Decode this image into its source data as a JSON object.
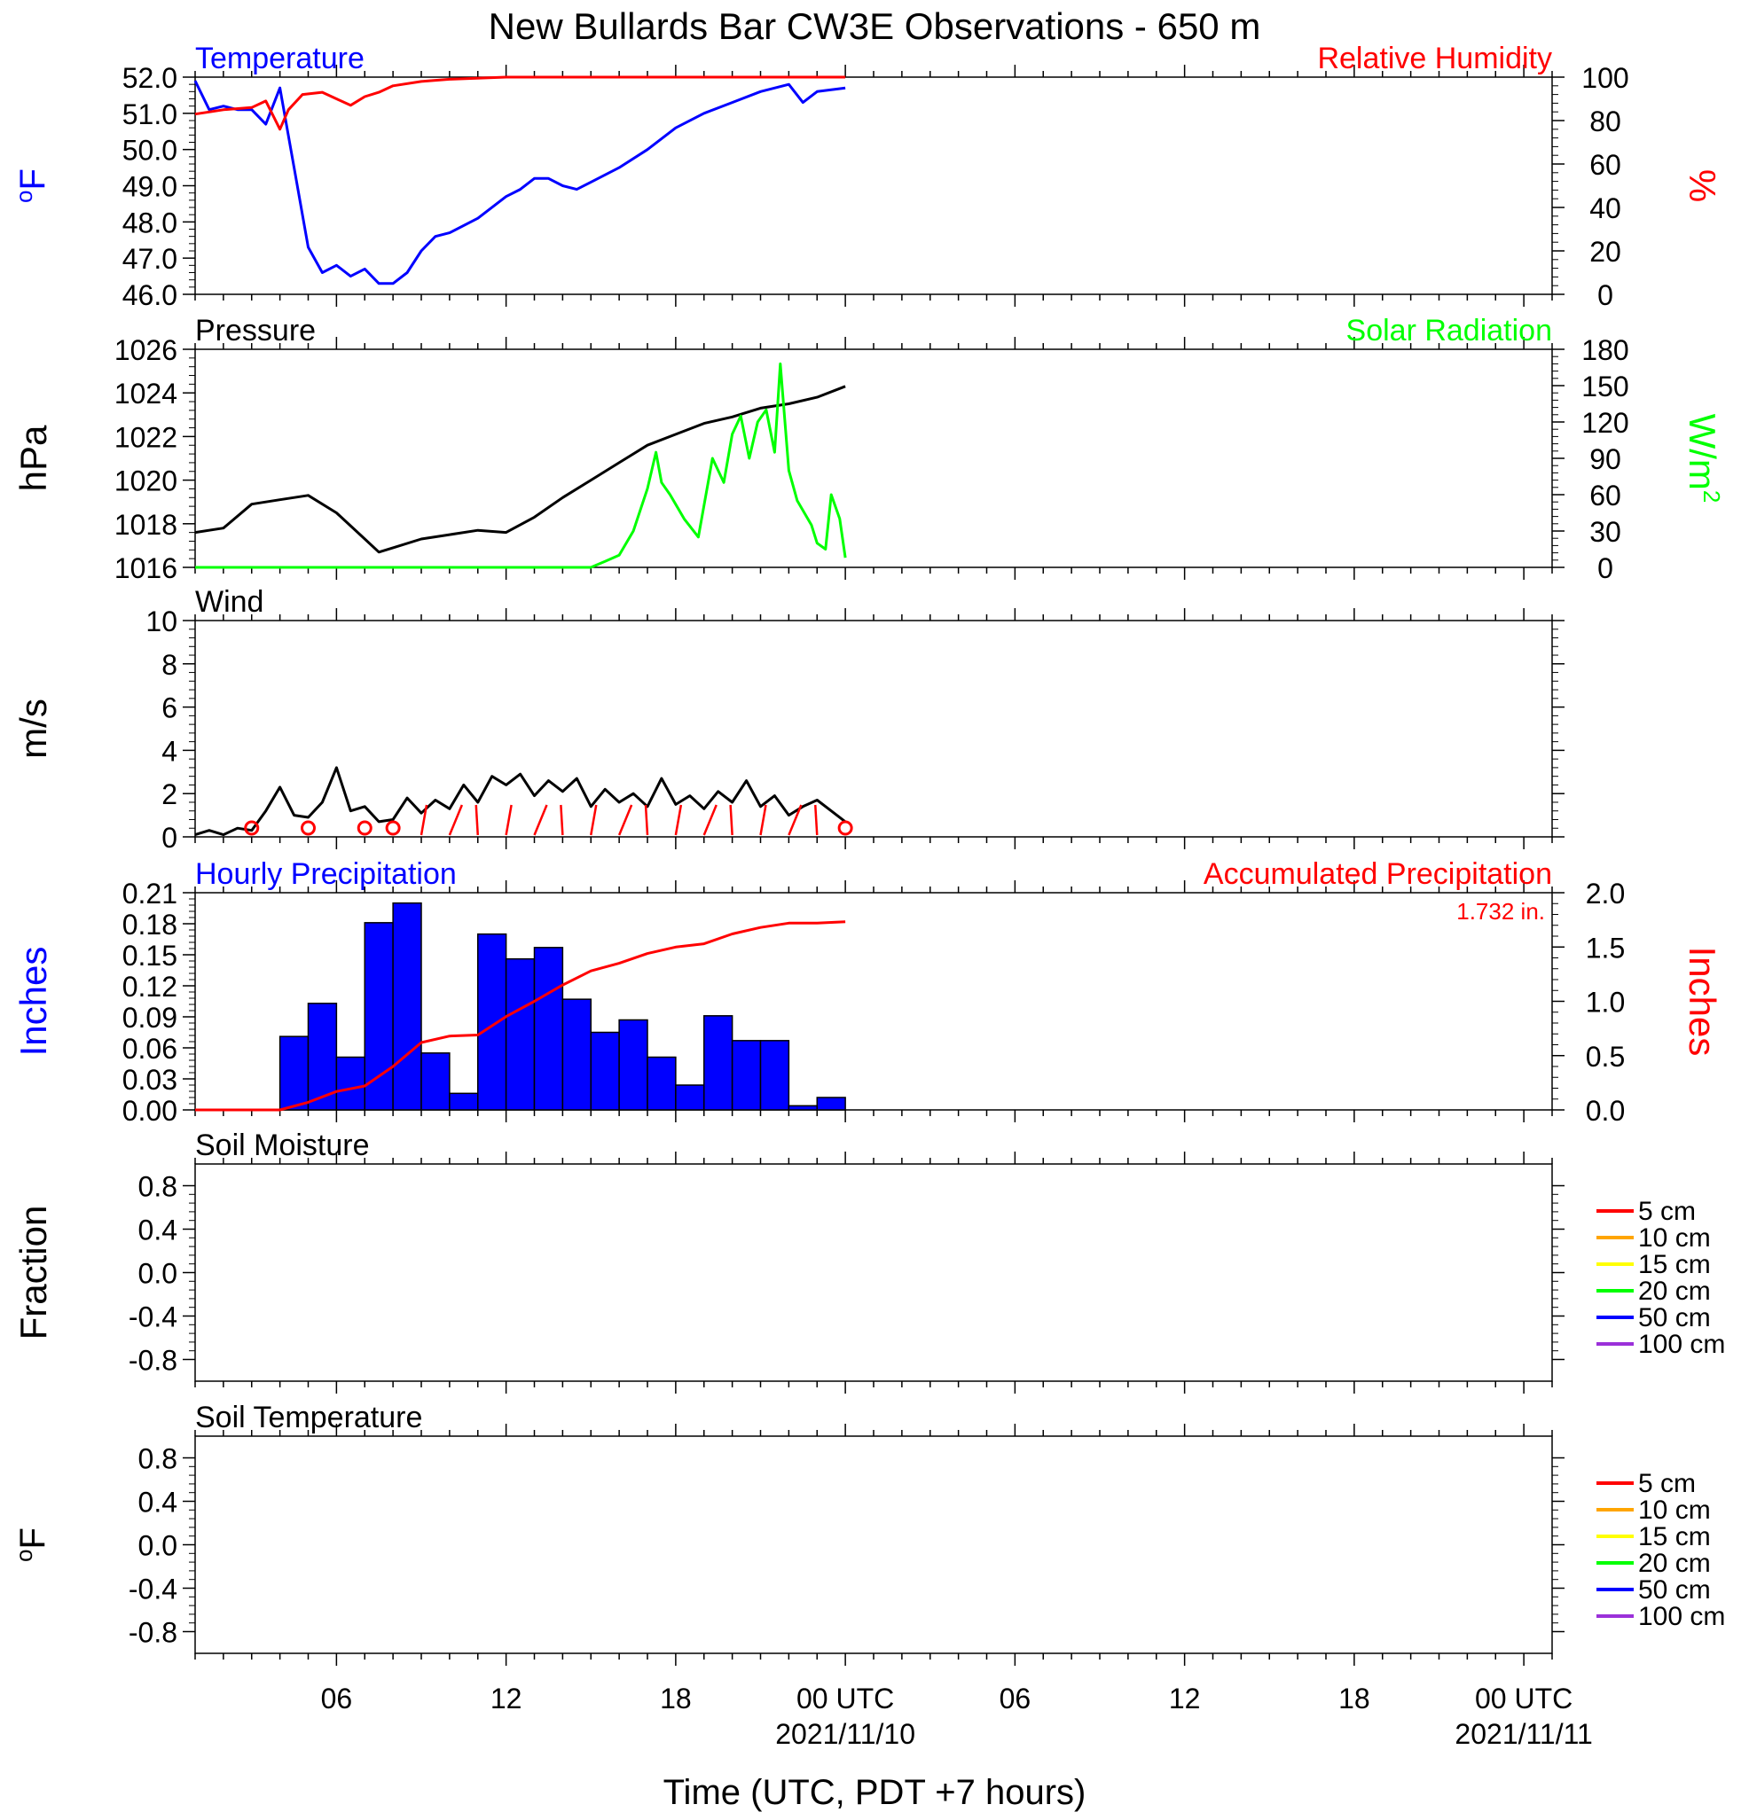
{
  "title": "New Bullards Bar CW3E Observations - 650 m",
  "xaxis": {
    "label": "Time (UTC, PDT +7 hours)",
    "ticks": [
      {
        "hour": 6,
        "label": "06"
      },
      {
        "hour": 12,
        "label": "12"
      },
      {
        "hour": 18,
        "label": "18"
      },
      {
        "hour": 24,
        "label": "00 UTC",
        "date": "2021/11/10"
      },
      {
        "hour": 30,
        "label": "06"
      },
      {
        "hour": 36,
        "label": "12"
      },
      {
        "hour": 42,
        "label": "18"
      },
      {
        "hour": 48,
        "label": "00 UTC",
        "date": "2021/11/11"
      }
    ]
  },
  "colors": {
    "blue": "#0000ff",
    "red": "#ff0000",
    "green": "#00ff00",
    "black": "#000000",
    "soil": [
      "#ff0000",
      "#ffa500",
      "#ffff00",
      "#00ff00",
      "#0000ff",
      "#9b30d9"
    ]
  },
  "chart_data": [
    {
      "type": "line",
      "panel": "temperature",
      "left_title": "Temperature",
      "right_title": "Relative Humidity",
      "ylabel": "oF",
      "ylabel_right": "%",
      "xlim": [
        1,
        49
      ],
      "ylim": [
        46,
        52
      ],
      "ylim_right": [
        0,
        100
      ],
      "yticks": [
        "46.0",
        "47.0",
        "48.0",
        "49.0",
        "50.0",
        "51.0",
        "52.0"
      ],
      "yticks_right": [
        "0",
        "20",
        "40",
        "60",
        "80",
        "100"
      ],
      "series": [
        {
          "name": "Temperature",
          "axis": "left",
          "color": "#0000ff",
          "x": [
            1,
            1.5,
            2,
            2.5,
            3,
            3.5,
            4,
            4.5,
            5,
            5.5,
            6,
            6.5,
            7,
            7.5,
            8,
            8.5,
            9,
            9.5,
            10,
            11,
            12,
            12.5,
            13,
            13.5,
            14,
            14.5,
            15,
            16,
            17,
            18,
            19,
            20,
            21,
            22,
            22.5,
            23,
            24
          ],
          "y": [
            51.9,
            51.1,
            51.2,
            51.1,
            51.1,
            50.7,
            51.7,
            49.5,
            47.3,
            46.6,
            46.8,
            46.5,
            46.7,
            46.3,
            46.3,
            46.6,
            47.2,
            47.6,
            47.7,
            48.1,
            48.7,
            48.9,
            49.2,
            49.2,
            49.0,
            48.9,
            49.1,
            49.5,
            50.0,
            50.6,
            51.0,
            51.3,
            51.6,
            51.8,
            51.3,
            51.6,
            51.7
          ]
        },
        {
          "name": "Relative Humidity",
          "axis": "right",
          "color": "#ff0000",
          "x": [
            1,
            2,
            3,
            3.5,
            4,
            4.3,
            4.8,
            5.5,
            6,
            6.5,
            7,
            7.5,
            8,
            9,
            10,
            12,
            14,
            24
          ],
          "y": [
            83,
            85,
            86,
            89,
            76,
            85,
            92,
            93,
            90,
            87,
            91,
            93,
            96,
            98,
            99,
            100,
            100,
            100
          ]
        }
      ]
    },
    {
      "type": "line",
      "panel": "pressure",
      "left_title": "Pressure",
      "right_title": "Solar Radiation",
      "ylabel": "hPa",
      "ylabel_right": "W/m",
      "ylabel_right_sup": "2",
      "xlim": [
        1,
        49
      ],
      "ylim": [
        1016,
        1026
      ],
      "ylim_right": [
        0,
        180
      ],
      "yticks": [
        "1016",
        "1018",
        "1020",
        "1022",
        "1024",
        "1026"
      ],
      "yticks_right": [
        "0",
        "30",
        "60",
        "90",
        "120",
        "150",
        "180"
      ],
      "series": [
        {
          "name": "Pressure",
          "axis": "left",
          "color": "#000000",
          "x": [
            1,
            2,
            3,
            4,
            5,
            6,
            7,
            7.5,
            8,
            9,
            10,
            11,
            12,
            13,
            14,
            15,
            16,
            17,
            18,
            19,
            20,
            21,
            22,
            23,
            24
          ],
          "y": [
            1017.6,
            1017.8,
            1018.9,
            1019.1,
            1019.3,
            1018.5,
            1017.3,
            1016.7,
            1016.9,
            1017.3,
            1017.5,
            1017.7,
            1017.6,
            1018.3,
            1019.2,
            1020.0,
            1020.8,
            1021.6,
            1022.1,
            1022.6,
            1022.9,
            1023.3,
            1023.5,
            1023.8,
            1024.3
          ]
        },
        {
          "name": "Solar Radiation",
          "axis": "right",
          "color": "#00ff00",
          "x": [
            1,
            15,
            15.5,
            16,
            16.5,
            17,
            17.3,
            17.5,
            17.8,
            18.3,
            18.8,
            19.3,
            19.7,
            20,
            20.3,
            20.6,
            20.9,
            21.2,
            21.5,
            21.7,
            22,
            22.3,
            22.8,
            23,
            23.3,
            23.5,
            23.8,
            24
          ],
          "y": [
            0,
            0,
            5,
            10,
            30,
            65,
            95,
            70,
            60,
            40,
            25,
            90,
            70,
            110,
            125,
            90,
            120,
            130,
            95,
            168,
            80,
            55,
            35,
            20,
            15,
            60,
            40,
            8
          ]
        }
      ]
    },
    {
      "type": "line",
      "panel": "wind",
      "left_title": "Wind",
      "ylabel": "m/s",
      "xlim": [
        1,
        49
      ],
      "ylim": [
        0,
        10
      ],
      "yticks": [
        "0",
        "2",
        "4",
        "6",
        "8",
        "10"
      ],
      "series": [
        {
          "name": "Wind",
          "color": "#000000",
          "x": [
            1,
            1.5,
            2,
            2.5,
            3,
            3.5,
            4,
            4.5,
            5,
            5.5,
            6,
            6.5,
            7,
            7.5,
            8,
            8.5,
            9,
            9.5,
            10,
            10.5,
            11,
            11.5,
            12,
            12.5,
            13,
            13.5,
            14,
            14.5,
            15,
            15.5,
            16,
            16.5,
            17,
            17.5,
            18,
            18.5,
            19,
            19.5,
            20,
            20.5,
            21,
            21.5,
            22,
            22.5,
            23,
            23.5,
            24
          ],
          "y": [
            0.1,
            0.3,
            0.1,
            0.4,
            0.3,
            1.2,
            2.3,
            1.0,
            0.9,
            1.6,
            3.2,
            1.2,
            1.4,
            0.7,
            0.8,
            1.8,
            1.1,
            1.7,
            1.3,
            2.4,
            1.6,
            2.8,
            2.4,
            2.9,
            1.9,
            2.6,
            2.1,
            2.7,
            1.4,
            2.2,
            1.6,
            2.0,
            1.4,
            2.7,
            1.5,
            1.9,
            1.3,
            2.1,
            1.6,
            2.6,
            1.4,
            1.9,
            1.0,
            1.4,
            1.7,
            1.2,
            0.7
          ]
        }
      ],
      "wind_direction_hours": [
        3,
        5,
        7,
        8,
        9,
        10,
        11,
        12,
        13,
        14,
        15,
        16,
        17,
        18,
        19,
        20,
        21,
        22,
        23,
        24
      ],
      "calm_hours": [
        3,
        5,
        7,
        8,
        24
      ]
    },
    {
      "type": "bar",
      "panel": "precipitation",
      "left_title": "Hourly Precipitation",
      "right_title": "Accumulated Precipitation",
      "total_label": "1.732 in.",
      "ylabel": "Inches",
      "ylabel_right": "Inches",
      "xlim": [
        1,
        49
      ],
      "ylim": [
        0,
        0.21
      ],
      "ylim_right": [
        0,
        2.0
      ],
      "yticks": [
        "0.00",
        "0.03",
        "0.06",
        "0.09",
        "0.12",
        "0.15",
        "0.18",
        "0.21"
      ],
      "yticks_right": [
        "0.0",
        "0.5",
        "1.0",
        "1.5",
        "2.0"
      ],
      "bars": {
        "name": "Hourly Precipitation",
        "color": "#0000ff",
        "start_hours": [
          4,
          5,
          6,
          7,
          8,
          9,
          10,
          11,
          12,
          13,
          14,
          15,
          16,
          17,
          18,
          19,
          20,
          21,
          22,
          23
        ],
        "values": [
          0.071,
          0.103,
          0.051,
          0.181,
          0.2,
          0.055,
          0.016,
          0.17,
          0.146,
          0.157,
          0.107,
          0.075,
          0.087,
          0.051,
          0.024,
          0.091,
          0.067,
          0.067,
          0.004,
          0.012
        ]
      },
      "series": [
        {
          "name": "Accumulated Precipitation",
          "axis": "right",
          "color": "#ff0000",
          "x": [
            1,
            4,
            5,
            6,
            7,
            8,
            9,
            10,
            11,
            12,
            13,
            14,
            15,
            16,
            17,
            18,
            19,
            20,
            21,
            22,
            23,
            24
          ],
          "y": [
            0,
            0,
            0.07,
            0.17,
            0.22,
            0.4,
            0.62,
            0.68,
            0.69,
            0.86,
            1.0,
            1.15,
            1.28,
            1.35,
            1.44,
            1.5,
            1.53,
            1.62,
            1.68,
            1.72,
            1.72,
            1.732
          ]
        }
      ]
    },
    {
      "type": "line",
      "panel": "soil_moisture",
      "left_title": "Soil Moisture",
      "ylabel": "Fraction",
      "xlim": [
        1,
        49
      ],
      "ylim": [
        -1,
        1
      ],
      "yticks": [
        "-0.8",
        "-0.4",
        "0.0",
        "0.4",
        "0.8"
      ],
      "legend": [
        "5 cm",
        "10 cm",
        "15 cm",
        "20 cm",
        "50 cm",
        "100 cm"
      ],
      "series": []
    },
    {
      "type": "line",
      "panel": "soil_temperature",
      "left_title": "Soil Temperature",
      "ylabel": "oF",
      "xlim": [
        1,
        49
      ],
      "ylim": [
        -1,
        1
      ],
      "yticks": [
        "-0.8",
        "-0.4",
        "0.0",
        "0.4",
        "0.8"
      ],
      "legend": [
        "5 cm",
        "10 cm",
        "15 cm",
        "20 cm",
        "50 cm",
        "100 cm"
      ],
      "series": []
    }
  ]
}
